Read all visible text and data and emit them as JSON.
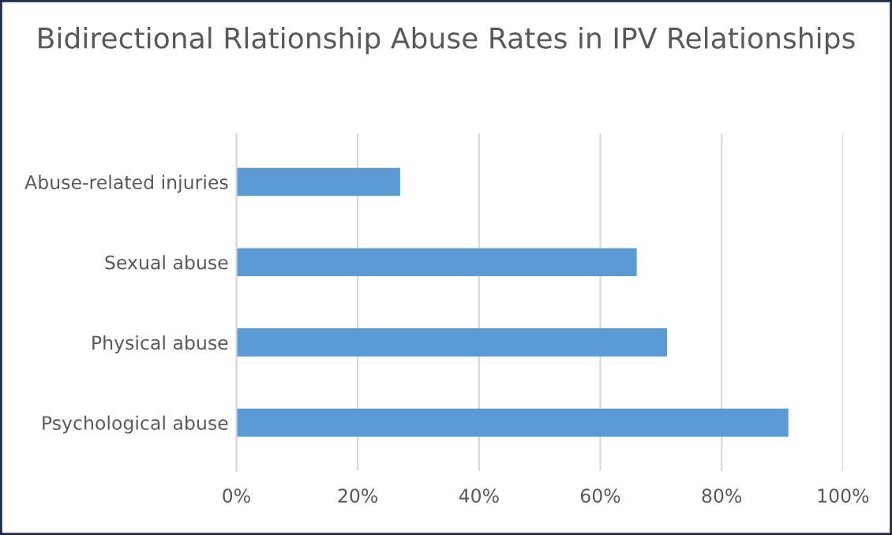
{
  "chart_data": {
    "type": "bar",
    "orientation": "horizontal",
    "title": "Bidirectional Rlationship Abuse Rates in IPV Relationships",
    "categories": [
      "Abuse-related injuries",
      "Sexual abuse",
      "Physical abuse",
      "Psychological abuse"
    ],
    "values": [
      27,
      66,
      71,
      91
    ],
    "color": "#5b9bd5",
    "xlim": [
      0,
      100
    ],
    "xticks": [
      {
        "value": 0,
        "label": "0%"
      },
      {
        "value": 20,
        "label": "20%"
      },
      {
        "value": 40,
        "label": "40%"
      },
      {
        "value": 60,
        "label": "60%"
      },
      {
        "value": 80,
        "label": "80%"
      },
      {
        "value": 100,
        "label": "100%"
      }
    ],
    "grid": "x",
    "legend": false
  }
}
